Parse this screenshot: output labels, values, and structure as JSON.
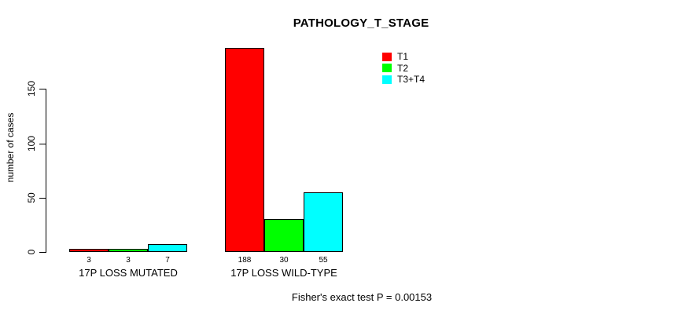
{
  "chart_data": {
    "type": "bar",
    "title": "PATHOLOGY_T_STAGE",
    "xlabel": "",
    "ylabel": "number of cases",
    "categories": [
      "17P LOSS MUTATED",
      "17P LOSS WILD-TYPE"
    ],
    "series": [
      {
        "name": "T1",
        "color": "#ff0000",
        "values": [
          3,
          188
        ]
      },
      {
        "name": "T2",
        "color": "#00ff00",
        "values": [
          3,
          30
        ]
      },
      {
        "name": "T3+T4",
        "color": "#00ffff",
        "values": [
          7,
          55
        ]
      }
    ],
    "bar_value_labels": [
      [
        "3",
        "3",
        "7"
      ],
      [
        "188",
        "30",
        "55"
      ]
    ],
    "yticks": [
      0,
      50,
      100,
      150
    ],
    "ylim": [
      0,
      190
    ],
    "grid": false,
    "legend_position": "top-right",
    "bar_border_color": "#000000",
    "annotation": "Fisher's exact test P = 0.00153"
  }
}
